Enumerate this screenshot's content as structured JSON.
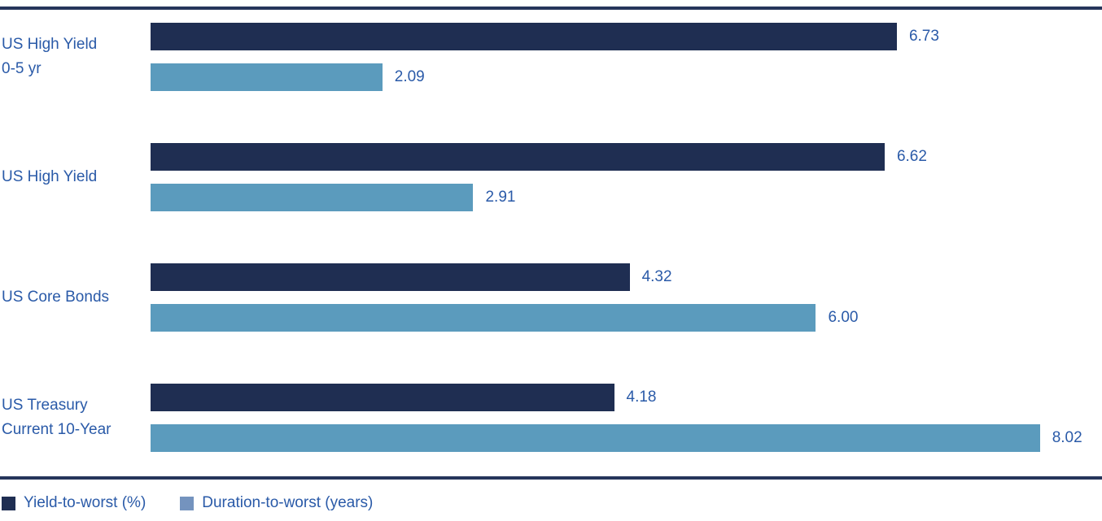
{
  "chart_data": {
    "type": "bar",
    "orientation": "horizontal",
    "title": "",
    "xlabel": "",
    "ylabel": "",
    "xlim": [
      0,
      8.58
    ],
    "grid": false,
    "legend_position": "bottom-left",
    "categories": [
      {
        "lines": [
          "US High Yield",
          "0-5 yr"
        ]
      },
      {
        "lines": [
          "US High Yield"
        ]
      },
      {
        "lines": [
          "US Core Bonds"
        ]
      },
      {
        "lines": [
          "US Treasury",
          "Current 10-Year"
        ]
      }
    ],
    "series": [
      {
        "name": "Yield-to-worst (%)",
        "color": "#1F2E52",
        "values": [
          6.73,
          6.62,
          4.32,
          4.18
        ]
      },
      {
        "name": "Duration-to-worst (years)",
        "color": "#5B9BBD",
        "values": [
          2.09,
          2.91,
          6.0,
          8.02
        ]
      }
    ]
  },
  "legend": {
    "items": [
      {
        "label": "Yield-to-worst (%)",
        "swatch": "#1F2E52"
      },
      {
        "label": "Duration-to-worst (years)",
        "swatch": "#7493BE"
      }
    ]
  },
  "colors": {
    "rule": "#26355B",
    "text": "#2A5AA8",
    "background": "#ffffff"
  }
}
